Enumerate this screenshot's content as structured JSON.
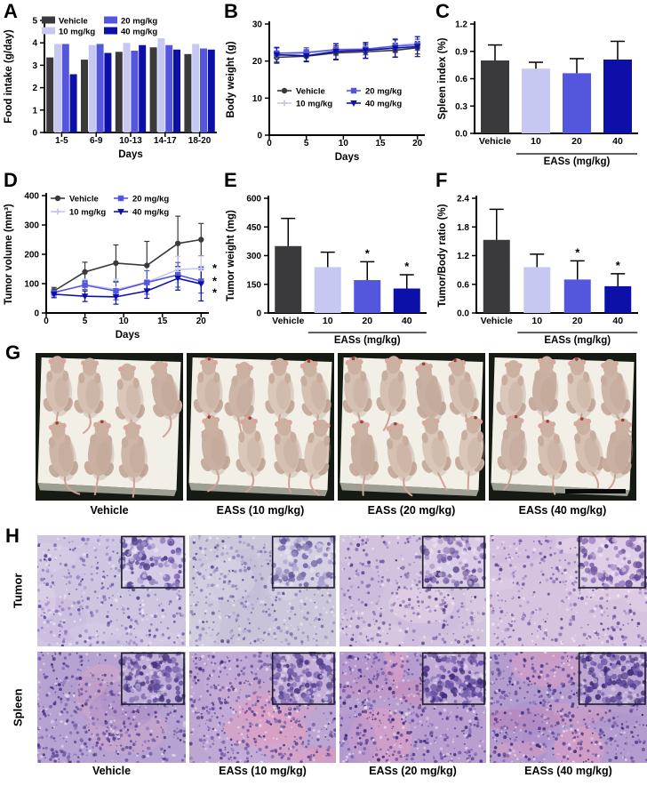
{
  "colors": {
    "vehicle": "#3a3a3c",
    "dose10": "#c6c8f2",
    "dose20": "#5457dd",
    "dose40": "#0d10a8",
    "axis": "#000000",
    "sig": "#000000"
  },
  "chart_data": [
    {
      "panel": "A",
      "type": "bar",
      "ylabel": "Food intake (g/day)",
      "xlabel": "Days",
      "categories": [
        "1-5",
        "6-9",
        "10-13",
        "14-17",
        "18-20"
      ],
      "ylim": [
        0,
        5
      ],
      "yticks": [
        "0",
        "1",
        "2",
        "3",
        "4",
        "5"
      ],
      "series": [
        {
          "name": "Vehicle",
          "color": "vehicle",
          "values": [
            3.35,
            3.25,
            3.6,
            3.8,
            3.5
          ]
        },
        {
          "name": "10 mg/kg",
          "color": "dose10",
          "values": [
            3.95,
            3.9,
            4.0,
            4.2,
            3.95
          ]
        },
        {
          "name": "20 mg/kg",
          "color": "dose20",
          "values": [
            3.95,
            3.95,
            3.65,
            3.9,
            3.75
          ]
        },
        {
          "name": "40 mg/kg",
          "color": "dose40",
          "values": [
            2.6,
            3.55,
            3.9,
            3.7,
            3.7
          ]
        }
      ],
      "legend_position": "top"
    },
    {
      "panel": "B",
      "type": "line",
      "ylabel": "Body weight (g)",
      "xlabel": "Days",
      "x": [
        1,
        5,
        9,
        13,
        17,
        20
      ],
      "xticks": [
        "0",
        "5",
        "10",
        "15",
        "20"
      ],
      "ylim": [
        0,
        30
      ],
      "yticks": [
        "0",
        "10",
        "20",
        "30"
      ],
      "series": [
        {
          "name": "Vehicle",
          "color": "vehicle",
          "marker": "circle",
          "values": [
            21.0,
            21.3,
            22.2,
            22.5,
            22.9,
            23.6
          ],
          "errors": [
            1.6,
            1.3,
            1.9,
            1.8,
            1.9,
            1.7
          ],
          "sig": ""
        },
        {
          "name": "10 mg/kg",
          "color": "dose10",
          "marker": "plus",
          "values": [
            21.5,
            22.1,
            23.0,
            23.2,
            24.2,
            24.9
          ],
          "errors": [
            1.3,
            1.2,
            1.6,
            1.6,
            1.9,
            1.6
          ],
          "sig": ""
        },
        {
          "name": "20 mg/kg",
          "color": "dose20",
          "marker": "square",
          "values": [
            22.1,
            22.3,
            23.1,
            23.2,
            24.0,
            24.4
          ],
          "errors": [
            1.4,
            1.3,
            1.5,
            1.5,
            1.7,
            1.5
          ],
          "sig": ""
        },
        {
          "name": "40 mg/kg",
          "color": "dose40",
          "marker": "triangle",
          "values": [
            21.7,
            21.4,
            22.6,
            22.9,
            23.5,
            23.9
          ],
          "errors": [
            2.0,
            1.6,
            2.1,
            2.1,
            2.4,
            2.7
          ],
          "sig": ""
        }
      ],
      "legend_position": "inside"
    },
    {
      "panel": "C",
      "type": "bar_single",
      "ylabel": "Spleen index (%)",
      "categories": [
        "Vehicle",
        "10",
        "20",
        "40"
      ],
      "values": [
        0.8,
        0.71,
        0.66,
        0.81
      ],
      "errors": [
        0.17,
        0.07,
        0.16,
        0.2
      ],
      "sig": [
        "",
        "",
        "",
        ""
      ],
      "bar_colors": [
        "vehicle",
        "dose10",
        "dose20",
        "dose40"
      ],
      "ylim": [
        0,
        1.2
      ],
      "yticks": [
        "0.0",
        "0.3",
        "0.6",
        "0.9",
        "1.2"
      ],
      "group_label": "EASs (mg/kg)"
    },
    {
      "panel": "D",
      "type": "line",
      "ylabel": "Tumor volume (mm³)",
      "xlabel": "Days",
      "x": [
        1,
        5,
        9,
        13,
        17,
        20
      ],
      "xticks": [
        "0",
        "5",
        "10",
        "15",
        "20"
      ],
      "ylim": [
        0,
        400
      ],
      "yticks": [
        "0",
        "100",
        "200",
        "300",
        "400"
      ],
      "series": [
        {
          "name": "Vehicle",
          "color": "vehicle",
          "marker": "circle",
          "values": [
            75,
            140,
            170,
            162,
            237,
            250
          ],
          "errors": [
            12,
            33,
            62,
            82,
            93,
            55
          ],
          "sig": ""
        },
        {
          "name": "10 mg/kg",
          "color": "dose10",
          "marker": "plus",
          "values": [
            68,
            97,
            80,
            105,
            148,
            152
          ],
          "errors": [
            15,
            18,
            35,
            55,
            45,
            42
          ],
          "sig": "*"
        },
        {
          "name": "20 mg/kg",
          "color": "dose20",
          "marker": "square",
          "values": [
            70,
            95,
            75,
            104,
            130,
            108
          ],
          "errors": [
            12,
            15,
            30,
            40,
            42,
            40
          ],
          "sig": "*"
        },
        {
          "name": "40 mg/kg",
          "color": "dose40",
          "marker": "triangle",
          "values": [
            64,
            57,
            55,
            75,
            118,
            99
          ],
          "errors": [
            12,
            18,
            25,
            25,
            40,
            58
          ],
          "sig": "*"
        }
      ],
      "legend_position": "top"
    },
    {
      "panel": "E",
      "type": "bar_single",
      "ylabel": "Tumor weight (mg)",
      "categories": [
        "Vehicle",
        "10",
        "20",
        "40"
      ],
      "values": [
        350,
        240,
        172,
        128
      ],
      "errors": [
        145,
        78,
        96,
        72
      ],
      "sig": [
        "",
        "",
        "*",
        "*"
      ],
      "bar_colors": [
        "vehicle",
        "dose10",
        "dose20",
        "dose40"
      ],
      "ylim": [
        0,
        600
      ],
      "yticks": [
        "0",
        "150",
        "300",
        "450",
        "600"
      ],
      "group_label": "EASs (mg/kg)"
    },
    {
      "panel": "F",
      "type": "bar_single",
      "ylabel": "Tumor/Body ratio (%)",
      "categories": [
        "Vehicle",
        "10",
        "20",
        "40"
      ],
      "values": [
        1.53,
        0.96,
        0.7,
        0.56
      ],
      "errors": [
        0.64,
        0.27,
        0.39,
        0.26
      ],
      "sig": [
        "",
        "",
        "*",
        "*"
      ],
      "bar_colors": [
        "vehicle",
        "dose10",
        "dose20",
        "dose40"
      ],
      "ylim": [
        0,
        2.4
      ],
      "yticks": [
        "0.0",
        "0.6",
        "1.2",
        "1.8",
        "2.4"
      ],
      "group_label": "EASs (mg/kg)"
    }
  ],
  "photo_panel": {
    "letter": "G",
    "labels": [
      "Vehicle",
      "EASs (10 mg/kg)",
      "EASs (20 mg/kg)",
      "EASs (40 mg/kg)"
    ]
  },
  "histo_panel": {
    "letter": "H",
    "row_labels": [
      "Tumor",
      "Spleen"
    ],
    "col_labels": [
      "Vehicle",
      "EASs (10 mg/kg)",
      "EASs (20 mg/kg)",
      "EASs (40 mg/kg)"
    ],
    "palettes": {
      "tumor": [
        {
          "base": "#cfc5e1",
          "dots": [
            "#8d77bd",
            "#6e58a8",
            "#a08bc8",
            "#53418f"
          ],
          "light": "#eee9f5",
          "patches": [
            "#dbcfe9",
            "#c6b6dd",
            "#e6d9ec"
          ],
          "inset": "#d7cce8"
        },
        {
          "base": "#ccc7db",
          "dots": [
            "#9186bc",
            "#7a6fae",
            "#aaa0cc",
            "#5f5496"
          ],
          "light": "#edeaf3",
          "patches": [
            "#d8d3e6",
            "#c2bcd8",
            "#dcd6e8"
          ],
          "inset": "#d5d0e3"
        },
        {
          "base": "#d1c3de",
          "dots": [
            "#8f74b8",
            "#7059a2",
            "#a78fc6",
            "#56418a"
          ],
          "light": "#efe8f4",
          "patches": [
            "#e0cde4",
            "#cab6da",
            "#e8d5e8"
          ],
          "inset": "#d9cce5"
        },
        {
          "base": "#d5c3df",
          "dots": [
            "#9678bc",
            "#7a5ca6",
            "#ab90ca",
            "#5c4690"
          ],
          "light": "#f1e9f5",
          "patches": [
            "#e4cfe8",
            "#cfb8dc",
            "#ecd9ec"
          ],
          "inset": "#ddcde6"
        }
      ],
      "spleen": [
        {
          "base": "#b7a3d2",
          "dots": [
            "#5a4496",
            "#6d57a8",
            "#47357e",
            "#7f6ab2"
          ],
          "light": "#e8e2f1",
          "patches": [
            "#a78fc8",
            "#c4b0da",
            "#d9a8c6"
          ],
          "inset": "#c0aed8"
        },
        {
          "base": "#bda6d2",
          "dots": [
            "#5e4798",
            "#715aaa",
            "#4a377f",
            "#826fb4"
          ],
          "light": "#eae3f2",
          "patches": [
            "#e29fc2",
            "#d88fb5",
            "#c7b2dc"
          ],
          "inset": "#c6b0d9"
        },
        {
          "base": "#b99fd0",
          "dots": [
            "#553f93",
            "#6a52a6",
            "#42307a",
            "#7d66b0"
          ],
          "light": "#e9e1f1",
          "patches": [
            "#e49fc4",
            "#ce87b2",
            "#b094cc"
          ],
          "inset": "#c2aad6"
        },
        {
          "base": "#b49ccf",
          "dots": [
            "#4f3a8e",
            "#6650a4",
            "#3d2c75",
            "#7862ae"
          ],
          "light": "#e7dff0",
          "patches": [
            "#df9ec2",
            "#c17fae",
            "#a98cc8"
          ],
          "inset": "#bda6d4"
        }
      ]
    }
  }
}
